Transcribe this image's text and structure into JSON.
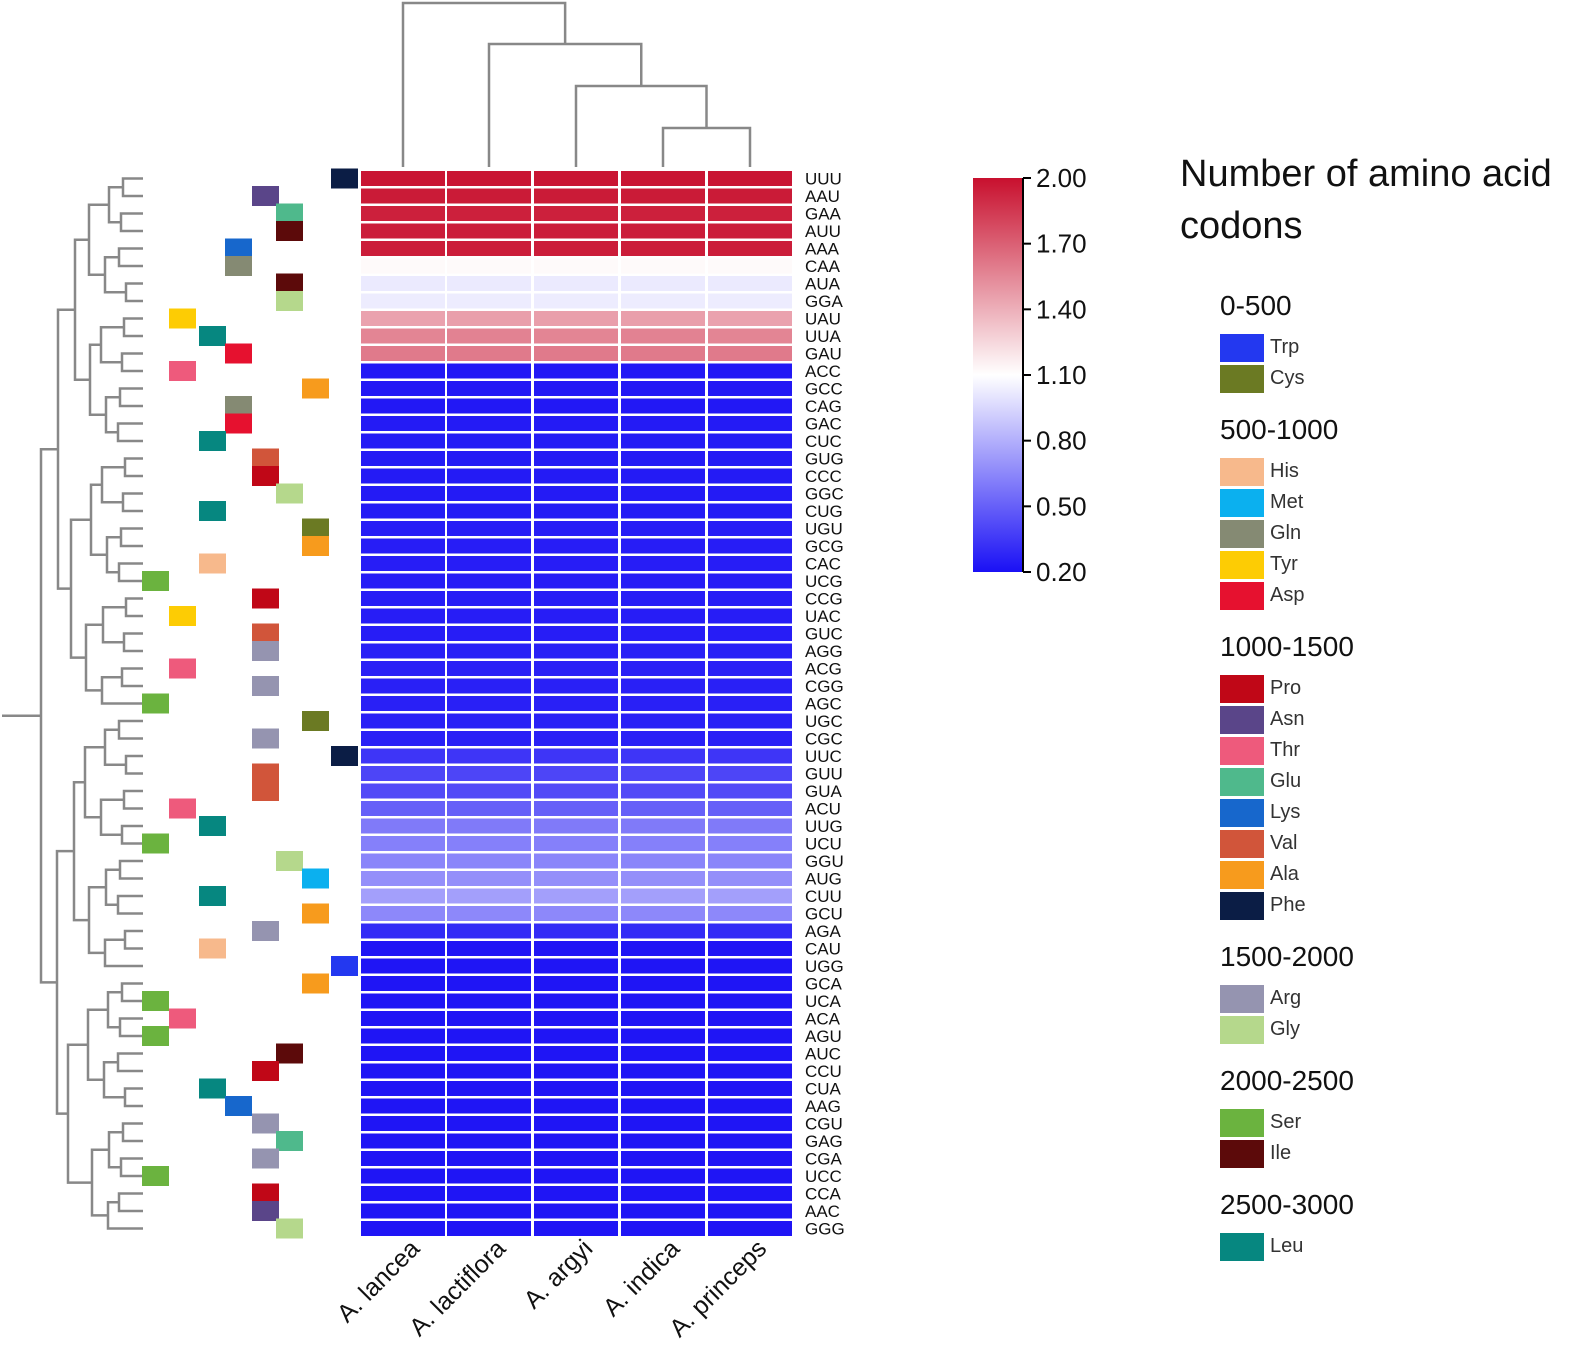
{
  "chart_data": {
    "type": "heatmap",
    "title": "",
    "columns": [
      "A. lancea",
      "A. lactiflora",
      "A. argyi",
      "A. indica",
      "A. princeps"
    ],
    "rows": [
      "UUU",
      "AAU",
      "GAA",
      "AUU",
      "AAA",
      "CAA",
      "AUA",
      "GGA",
      "UAU",
      "UUA",
      "GAU",
      "ACC",
      "GCC",
      "CAG",
      "GAC",
      "CUC",
      "GUG",
      "CCC",
      "GGC",
      "CUG",
      "UGU",
      "GCG",
      "CAC",
      "UCG",
      "CCG",
      "UAC",
      "GUC",
      "AGG",
      "ACG",
      "CGG",
      "AGC",
      "UGC",
      "CGC",
      "UUC",
      "GUU",
      "GUA",
      "ACU",
      "UUG",
      "UCU",
      "GGU",
      "AUG",
      "CUU",
      "GCU",
      "AGA",
      "CAU",
      "UGG",
      "GCA",
      "UCA",
      "ACA",
      "AGU",
      "AUC",
      "CCU",
      "CUA",
      "AAG",
      "CGU",
      "GAG",
      "CGA",
      "UCC",
      "CCA",
      "AAC",
      "GGG"
    ],
    "row_amino_acids": [
      "Phe",
      "Asn",
      "Glu",
      "Ile",
      "Lys",
      "Gln",
      "Ile",
      "Gly",
      "Tyr",
      "Leu",
      "Asp",
      "Thr",
      "Ala",
      "Gln",
      "Asp",
      "Leu",
      "Val",
      "Pro",
      "Gly",
      "Leu",
      "Cys",
      "Ala",
      "His",
      "Ser",
      "Pro",
      "Tyr",
      "Val",
      "Arg",
      "Thr",
      "Arg",
      "Ser",
      "Cys",
      "Arg",
      "Phe",
      "Val",
      "Val",
      "Thr",
      "Leu",
      "Ser",
      "Gly",
      "Met",
      "Leu",
      "Ala",
      "Arg",
      "His",
      "Trp",
      "Ala",
      "Ser",
      "Thr",
      "Ser",
      "Ile",
      "Pro",
      "Leu",
      "Lys",
      "Arg",
      "Glu",
      "Arg",
      "Ser",
      "Pro",
      "Asn",
      "Gly"
    ],
    "values": [
      [
        1.98,
        1.98,
        1.98,
        1.98,
        1.98
      ],
      [
        1.96,
        1.96,
        1.96,
        1.96,
        1.96
      ],
      [
        1.94,
        1.94,
        1.94,
        1.94,
        1.94
      ],
      [
        1.95,
        1.95,
        1.95,
        1.95,
        1.95
      ],
      [
        1.95,
        1.95,
        1.95,
        1.95,
        1.95
      ],
      [
        1.12,
        1.12,
        1.12,
        1.12,
        1.12
      ],
      [
        1.02,
        1.02,
        1.02,
        1.02,
        1.02
      ],
      [
        1.03,
        1.03,
        1.03,
        1.03,
        1.03
      ],
      [
        1.45,
        1.46,
        1.46,
        1.46,
        1.45
      ],
      [
        1.56,
        1.57,
        1.56,
        1.57,
        1.56
      ],
      [
        1.6,
        1.6,
        1.6,
        1.6,
        1.6
      ],
      [
        0.23,
        0.23,
        0.23,
        0.23,
        0.23
      ],
      [
        0.23,
        0.23,
        0.23,
        0.23,
        0.23
      ],
      [
        0.23,
        0.23,
        0.23,
        0.23,
        0.23
      ],
      [
        0.24,
        0.24,
        0.24,
        0.24,
        0.24
      ],
      [
        0.24,
        0.24,
        0.24,
        0.24,
        0.24
      ],
      [
        0.24,
        0.24,
        0.24,
        0.24,
        0.24
      ],
      [
        0.24,
        0.24,
        0.24,
        0.24,
        0.24
      ],
      [
        0.24,
        0.24,
        0.24,
        0.24,
        0.24
      ],
      [
        0.24,
        0.24,
        0.24,
        0.24,
        0.24
      ],
      [
        0.25,
        0.25,
        0.25,
        0.25,
        0.25
      ],
      [
        0.25,
        0.25,
        0.25,
        0.25,
        0.25
      ],
      [
        0.25,
        0.25,
        0.25,
        0.25,
        0.25
      ],
      [
        0.25,
        0.25,
        0.25,
        0.25,
        0.25
      ],
      [
        0.25,
        0.25,
        0.25,
        0.25,
        0.25
      ],
      [
        0.25,
        0.25,
        0.25,
        0.25,
        0.25
      ],
      [
        0.25,
        0.25,
        0.25,
        0.25,
        0.25
      ],
      [
        0.26,
        0.26,
        0.26,
        0.26,
        0.26
      ],
      [
        0.26,
        0.26,
        0.26,
        0.26,
        0.26
      ],
      [
        0.26,
        0.26,
        0.26,
        0.26,
        0.26
      ],
      [
        0.26,
        0.26,
        0.26,
        0.26,
        0.26
      ],
      [
        0.26,
        0.26,
        0.26,
        0.26,
        0.26
      ],
      [
        0.26,
        0.26,
        0.26,
        0.26,
        0.26
      ],
      [
        0.34,
        0.34,
        0.34,
        0.34,
        0.34
      ],
      [
        0.4,
        0.4,
        0.4,
        0.4,
        0.4
      ],
      [
        0.42,
        0.42,
        0.42,
        0.42,
        0.42
      ],
      [
        0.5,
        0.5,
        0.5,
        0.5,
        0.5
      ],
      [
        0.6,
        0.6,
        0.6,
        0.6,
        0.6
      ],
      [
        0.62,
        0.62,
        0.62,
        0.62,
        0.62
      ],
      [
        0.64,
        0.64,
        0.64,
        0.64,
        0.64
      ],
      [
        0.68,
        0.68,
        0.68,
        0.68,
        0.68
      ],
      [
        0.74,
        0.74,
        0.74,
        0.74,
        0.74
      ],
      [
        0.65,
        0.65,
        0.65,
        0.65,
        0.65
      ],
      [
        0.3,
        0.3,
        0.3,
        0.3,
        0.3
      ],
      [
        0.22,
        0.22,
        0.22,
        0.22,
        0.22
      ],
      [
        0.22,
        0.22,
        0.22,
        0.22,
        0.22
      ],
      [
        0.22,
        0.22,
        0.22,
        0.22,
        0.22
      ],
      [
        0.22,
        0.22,
        0.22,
        0.22,
        0.22
      ],
      [
        0.22,
        0.22,
        0.22,
        0.22,
        0.22
      ],
      [
        0.22,
        0.22,
        0.22,
        0.22,
        0.22
      ],
      [
        0.22,
        0.22,
        0.22,
        0.22,
        0.22
      ],
      [
        0.22,
        0.22,
        0.22,
        0.22,
        0.22
      ],
      [
        0.22,
        0.22,
        0.22,
        0.22,
        0.22
      ],
      [
        0.22,
        0.22,
        0.22,
        0.22,
        0.22
      ],
      [
        0.22,
        0.22,
        0.22,
        0.22,
        0.22
      ],
      [
        0.22,
        0.22,
        0.22,
        0.22,
        0.22
      ],
      [
        0.22,
        0.22,
        0.22,
        0.22,
        0.22
      ],
      [
        0.22,
        0.22,
        0.22,
        0.22,
        0.22
      ],
      [
        0.22,
        0.22,
        0.22,
        0.22,
        0.22
      ],
      [
        0.22,
        0.22,
        0.22,
        0.22,
        0.22
      ],
      [
        0.22,
        0.22,
        0.22,
        0.22,
        0.22
      ]
    ],
    "color_scale": {
      "min": 0.2,
      "max": 2.0,
      "ticks": [
        "2.00",
        "1.70",
        "1.40",
        "1.10",
        "0.80",
        "0.50",
        "0.20"
      ],
      "low_color": "#1a10f5",
      "mid_color": "#ffffff",
      "mid_value": 1.1,
      "high_color": "#c8102e"
    },
    "amino_acid_legend": {
      "title_lines": [
        "Number of amino acid",
        "codons"
      ],
      "groups": [
        {
          "range": "0-500",
          "items": [
            {
              "name": "Trp",
              "color": "#2338f0"
            },
            {
              "name": "Cys",
              "color": "#6b7a23"
            }
          ]
        },
        {
          "range": "500-1000",
          "items": [
            {
              "name": "His",
              "color": "#f7b98c"
            },
            {
              "name": "Met",
              "color": "#0bb0ef"
            },
            {
              "name": "Gln",
              "color": "#858a73"
            },
            {
              "name": "Tyr",
              "color": "#fdcc04"
            },
            {
              "name": "Asp",
              "color": "#e6112f"
            }
          ]
        },
        {
          "range": "1000-1500",
          "items": [
            {
              "name": "Pro",
              "color": "#c00717"
            },
            {
              "name": "Asn",
              "color": "#5a4589"
            },
            {
              "name": "Thr",
              "color": "#ee5a7c"
            },
            {
              "name": "Glu",
              "color": "#4fb98c"
            },
            {
              "name": "Lys",
              "color": "#1767cc"
            },
            {
              "name": "Val",
              "color": "#d1553a"
            },
            {
              "name": "Ala",
              "color": "#f79b1d"
            },
            {
              "name": "Phe",
              "color": "#0b1d45"
            }
          ]
        },
        {
          "range": "1500-2000",
          "items": [
            {
              "name": "Arg",
              "color": "#9594b0"
            },
            {
              "name": "Gly",
              "color": "#b5d88c"
            }
          ]
        },
        {
          "range": "2000-2500",
          "items": [
            {
              "name": "Ser",
              "color": "#6bb33f"
            },
            {
              "name": "Ile",
              "color": "#5c0a0a"
            }
          ]
        },
        {
          "range": "2500-3000",
          "items": [
            {
              "name": "Leu",
              "color": "#068780"
            }
          ]
        }
      ]
    }
  }
}
